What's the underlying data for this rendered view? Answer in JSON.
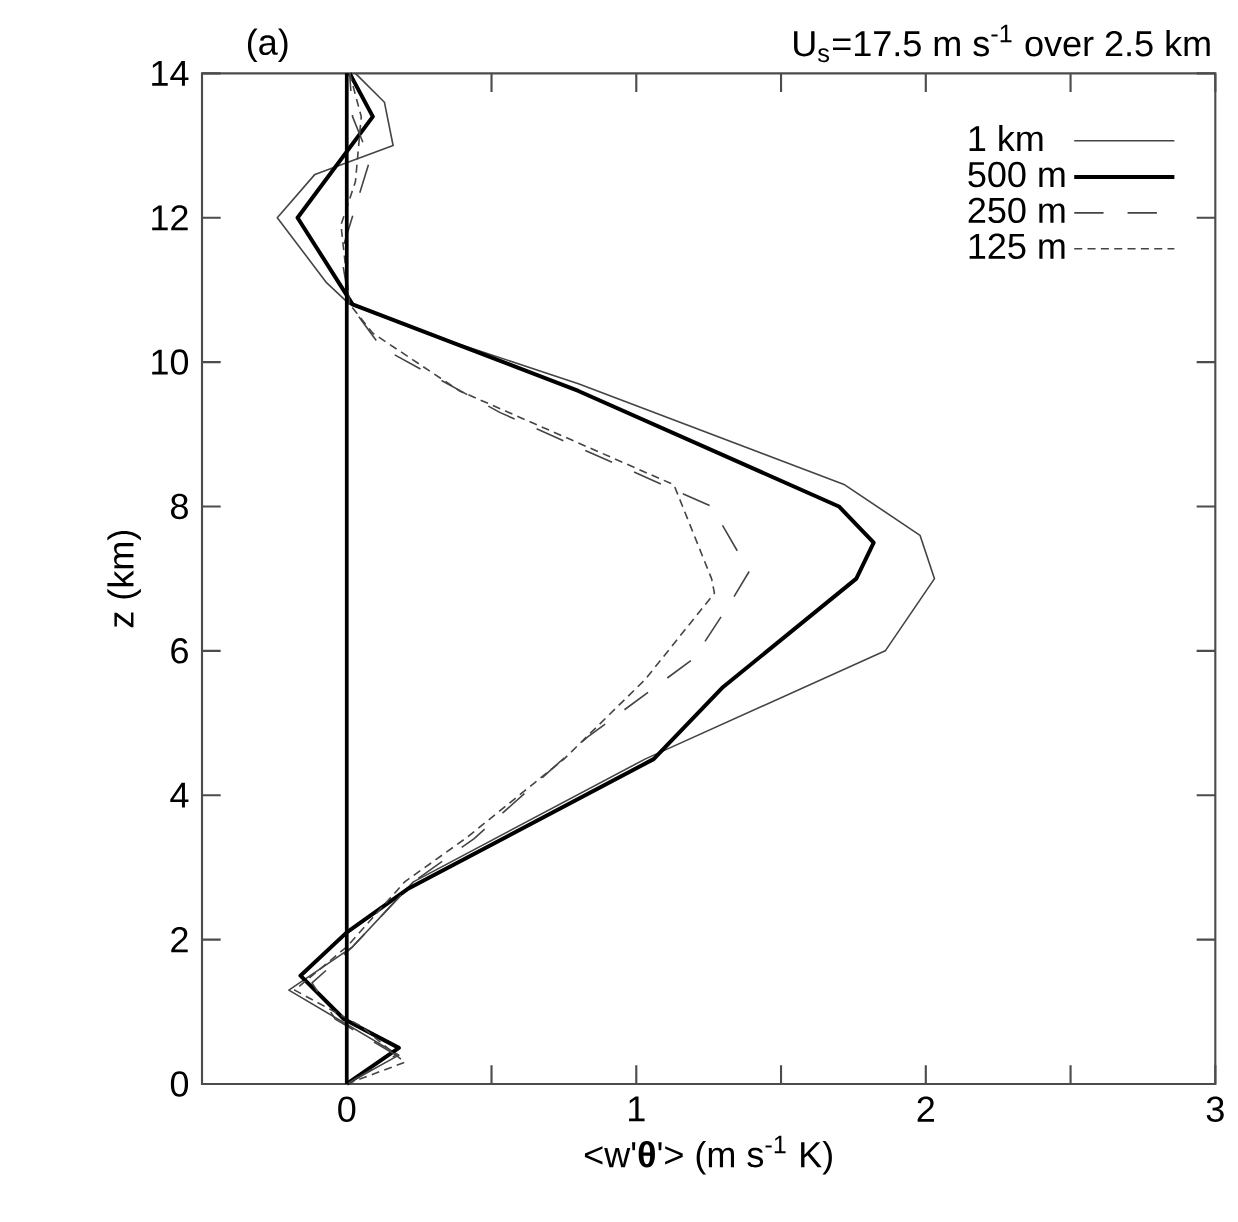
{
  "chart_data": {
    "type": "line",
    "title": "U$_{s}$=17.5 m s$^{-1}$ over 2.5 km",
    "annotations": [
      "(a)"
    ],
    "xlabel": "<w'**θ**'> (m s$^{-1}$ K)",
    "ylabel": "z (km)",
    "xlim": [
      -0.5,
      3
    ],
    "ylim": [
      0,
      14
    ],
    "xticks": [
      0,
      {
        "value": 0.5,
        "label": null
      },
      1,
      {
        "value": 1.5,
        "label": null
      },
      2,
      {
        "value": 2.5,
        "label": null
      },
      3
    ],
    "yticks": [
      0,
      2,
      4,
      6,
      8,
      10,
      12,
      14
    ],
    "legend": "top right",
    "ref_lines": [
      {
        "axis": "x",
        "value": 0,
        "color": "#000000"
      }
    ],
    "series": [
      {
        "name": "1 km",
        "color": "#444444",
        "line_style": "solid",
        "x": [
          0,
          0.18,
          -0.2,
          0.02,
          0.23,
          1.03,
          1.86,
          2.03,
          1.98,
          1.72,
          0.8,
          0.35,
          0.01,
          -0.07,
          -0.24,
          -0.11,
          0.16,
          0.13,
          0.03
        ],
        "values": [
          0,
          0.4,
          1.3,
          1.9,
          2.8,
          4.5,
          6.0,
          7.0,
          7.6,
          8.3,
          9.7,
          10.3,
          10.8,
          11.1,
          12.0,
          12.6,
          13.0,
          13.6,
          14.0
        ]
      },
      {
        "name": "500 m",
        "color": "#000000",
        "line_style": "solid",
        "x": [
          0,
          0.18,
          -0.01,
          -0.16,
          0,
          0.21,
          1.06,
          1.3,
          1.76,
          1.82,
          1.7,
          0.8,
          0.02,
          -0.17,
          0.09,
          0.01
        ],
        "values": [
          0,
          0.5,
          0.9,
          1.5,
          2.1,
          2.7,
          4.5,
          5.5,
          7.0,
          7.5,
          8.0,
          9.6,
          10.8,
          12.0,
          13.4,
          14.0
        ]
      },
      {
        "name": "250 m",
        "color": "#444444",
        "line_style": "dashed",
        "x": [
          0,
          0.17,
          -0.04,
          -0.12,
          0.02,
          0.23,
          0.44,
          0.83,
          1.2,
          1.33,
          1.39,
          1.26,
          0.53,
          0.12,
          0.01,
          -0.02,
          0.08,
          0.02,
          0.01
        ],
        "values": [
          0,
          0.4,
          0.9,
          1.4,
          1.9,
          2.8,
          3.4,
          4.8,
          5.9,
          6.7,
          7.1,
          8.0,
          9.3,
          10.2,
          10.8,
          11.5,
          12.8,
          13.4,
          14.0
        ]
      },
      {
        "name": "125 m",
        "color": "#444444",
        "line_style": "dotted",
        "x": [
          0,
          0.2,
          0.05,
          -0.18,
          0,
          0.2,
          0.41,
          0.75,
          1.03,
          1.27,
          1.26,
          1.13,
          0.39,
          0.09,
          0.01,
          -0.02,
          0.03,
          0.05,
          0.01
        ],
        "values": [
          0,
          0.3,
          0.8,
          1.3,
          1.9,
          2.8,
          3.4,
          4.5,
          5.6,
          6.8,
          7.0,
          8.3,
          9.6,
          10.4,
          10.8,
          11.9,
          12.5,
          13.4,
          14.0
        ]
      }
    ]
  }
}
